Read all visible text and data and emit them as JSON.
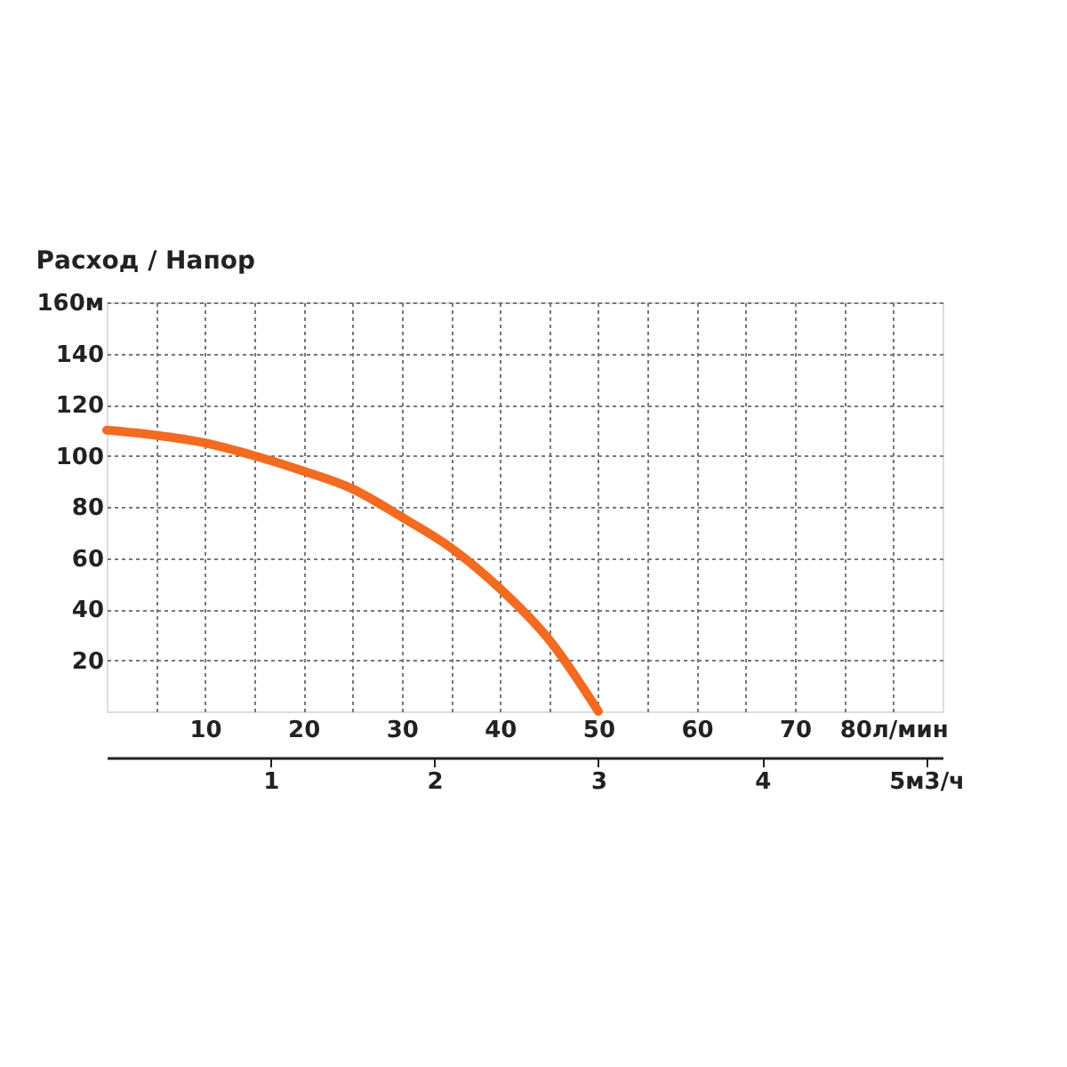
{
  "chart_data": {
    "type": "line",
    "title": "Расход / Напор",
    "x": [
      0,
      5,
      10,
      15,
      20,
      25,
      30,
      35,
      40,
      45,
      50
    ],
    "series": [
      {
        "color": "#f26b21",
        "values": [
          110,
          108,
          105,
          100,
          94,
          87,
          76,
          64,
          48,
          28,
          0
        ]
      }
    ],
    "xlim": [
      0,
      85
    ],
    "ylim": [
      0,
      160
    ],
    "xticks": [
      {
        "value": 5,
        "label": null
      },
      10,
      {
        "value": 15,
        "label": null
      },
      20,
      {
        "value": 25,
        "label": null
      },
      30,
      {
        "value": 35,
        "label": null
      },
      40,
      {
        "value": 45,
        "label": null
      },
      50,
      {
        "value": 55,
        "label": null
      },
      60,
      {
        "value": 65,
        "label": null
      },
      70,
      {
        "value": 75,
        "label": null
      },
      {
        "value": 80,
        "label": "80л/мин"
      }
    ],
    "yticks": [
      20,
      40,
      60,
      80,
      100,
      120,
      140,
      {
        "value": 160,
        "label": "160м"
      }
    ],
    "x2lim": [
      0,
      5.1
    ],
    "x2ticks": [
      1,
      2,
      3,
      4,
      {
        "value": 5,
        "label": "5м3/ч"
      }
    ],
    "grid": true,
    "marker": "none",
    "line_style": "solid"
  }
}
